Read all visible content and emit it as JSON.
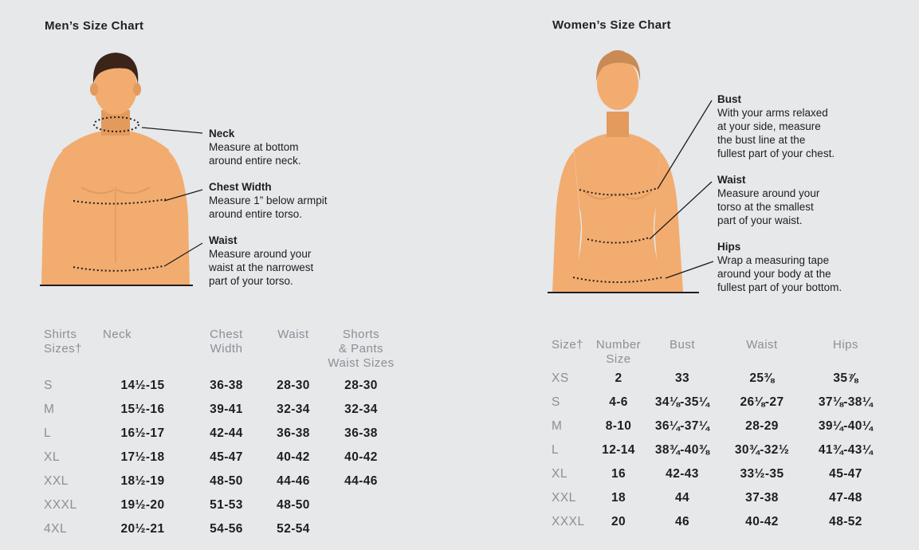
{
  "men": {
    "title": "Men’s Size Chart",
    "annotations": {
      "neck": {
        "head": "Neck",
        "lines": [
          "Measure at bottom",
          "around entire neck."
        ]
      },
      "chest": {
        "head": "Chest Width",
        "lines": [
          "Measure 1” below armpit",
          "around entire torso."
        ]
      },
      "waist": {
        "head": "Waist",
        "lines": [
          "Measure around your",
          "waist at the narrowest",
          "part of your torso."
        ]
      }
    },
    "headers": {
      "size": [
        "Shirts",
        "Sizes†"
      ],
      "neck": [
        "Neck"
      ],
      "chest": [
        "Chest",
        "Width"
      ],
      "waist": [
        "Waist"
      ],
      "shorts": [
        "Shorts",
        "& Pants",
        "Waist Sizes"
      ]
    },
    "rows": [
      {
        "size": "S",
        "neck": "14½-15",
        "chest": "36-38",
        "waist": "28-30",
        "shorts": "28-30"
      },
      {
        "size": "M",
        "neck": "15½-16",
        "chest": "39-41",
        "waist": "32-34",
        "shorts": "32-34"
      },
      {
        "size": "L",
        "neck": "16½-17",
        "chest": "42-44",
        "waist": "36-38",
        "shorts": "36-38"
      },
      {
        "size": "XL",
        "neck": "17½-18",
        "chest": "45-47",
        "waist": "40-42",
        "shorts": "40-42"
      },
      {
        "size": "XXL",
        "neck": "18½-19",
        "chest": "48-50",
        "waist": "44-46",
        "shorts": "44-46"
      },
      {
        "size": "XXXL",
        "neck": "19½-20",
        "chest": "51-53",
        "waist": "48-50",
        "shorts": ""
      },
      {
        "size": "4XL",
        "neck": "20½-21",
        "chest": "54-56",
        "waist": "52-54",
        "shorts": ""
      }
    ]
  },
  "women": {
    "title": "Women’s Size Chart",
    "annotations": {
      "bust": {
        "head": "Bust",
        "lines": [
          "With your arms relaxed",
          "at your side, measure",
          "the bust line at the",
          "fullest part of your chest."
        ]
      },
      "waist": {
        "head": "Waist",
        "lines": [
          "Measure around your",
          "torso at the smallest",
          "part of your waist."
        ]
      },
      "hips": {
        "head": "Hips",
        "lines": [
          "Wrap a measuring tape",
          "around your body at the",
          "fullest part of your bottom."
        ]
      }
    },
    "headers": {
      "size": [
        "Size†"
      ],
      "number": [
        "Number",
        "Size"
      ],
      "bust": [
        "Bust"
      ],
      "waist": [
        "Waist"
      ],
      "hips": [
        "Hips"
      ]
    },
    "rows": [
      {
        "size": "XS",
        "number": "2",
        "bust": "33",
        "waist": "25⅜",
        "hips": "35⅞"
      },
      {
        "size": "S",
        "number": "4-6",
        "bust": "34⅛-35¼",
        "waist": "26⅛-27",
        "hips": "37⅛-38¼"
      },
      {
        "size": "M",
        "number": "8-10",
        "bust": "36¼-37¼",
        "waist": "28-29",
        "hips": "39¼-40¼"
      },
      {
        "size": "L",
        "number": "12-14",
        "bust": "38¾-40⅜",
        "waist": "30¾-32½",
        "hips": "41¾-43¼"
      },
      {
        "size": "XL",
        "number": "16",
        "bust": "42-43",
        "waist": "33½-35",
        "hips": "45-47"
      },
      {
        "size": "XXL",
        "number": "18",
        "bust": "44",
        "waist": "37-38",
        "hips": "47-48"
      },
      {
        "size": "XXXL",
        "number": "20",
        "bust": "46",
        "waist": "40-42",
        "hips": "48-52"
      }
    ]
  },
  "colors": {
    "skin": "#f2ac70",
    "skin_shade": "#e39a5d",
    "men_hair": "#3b2418",
    "women_hair": "#c98a55",
    "label_gray": "#8a9096",
    "background": "#e6e8ea"
  }
}
